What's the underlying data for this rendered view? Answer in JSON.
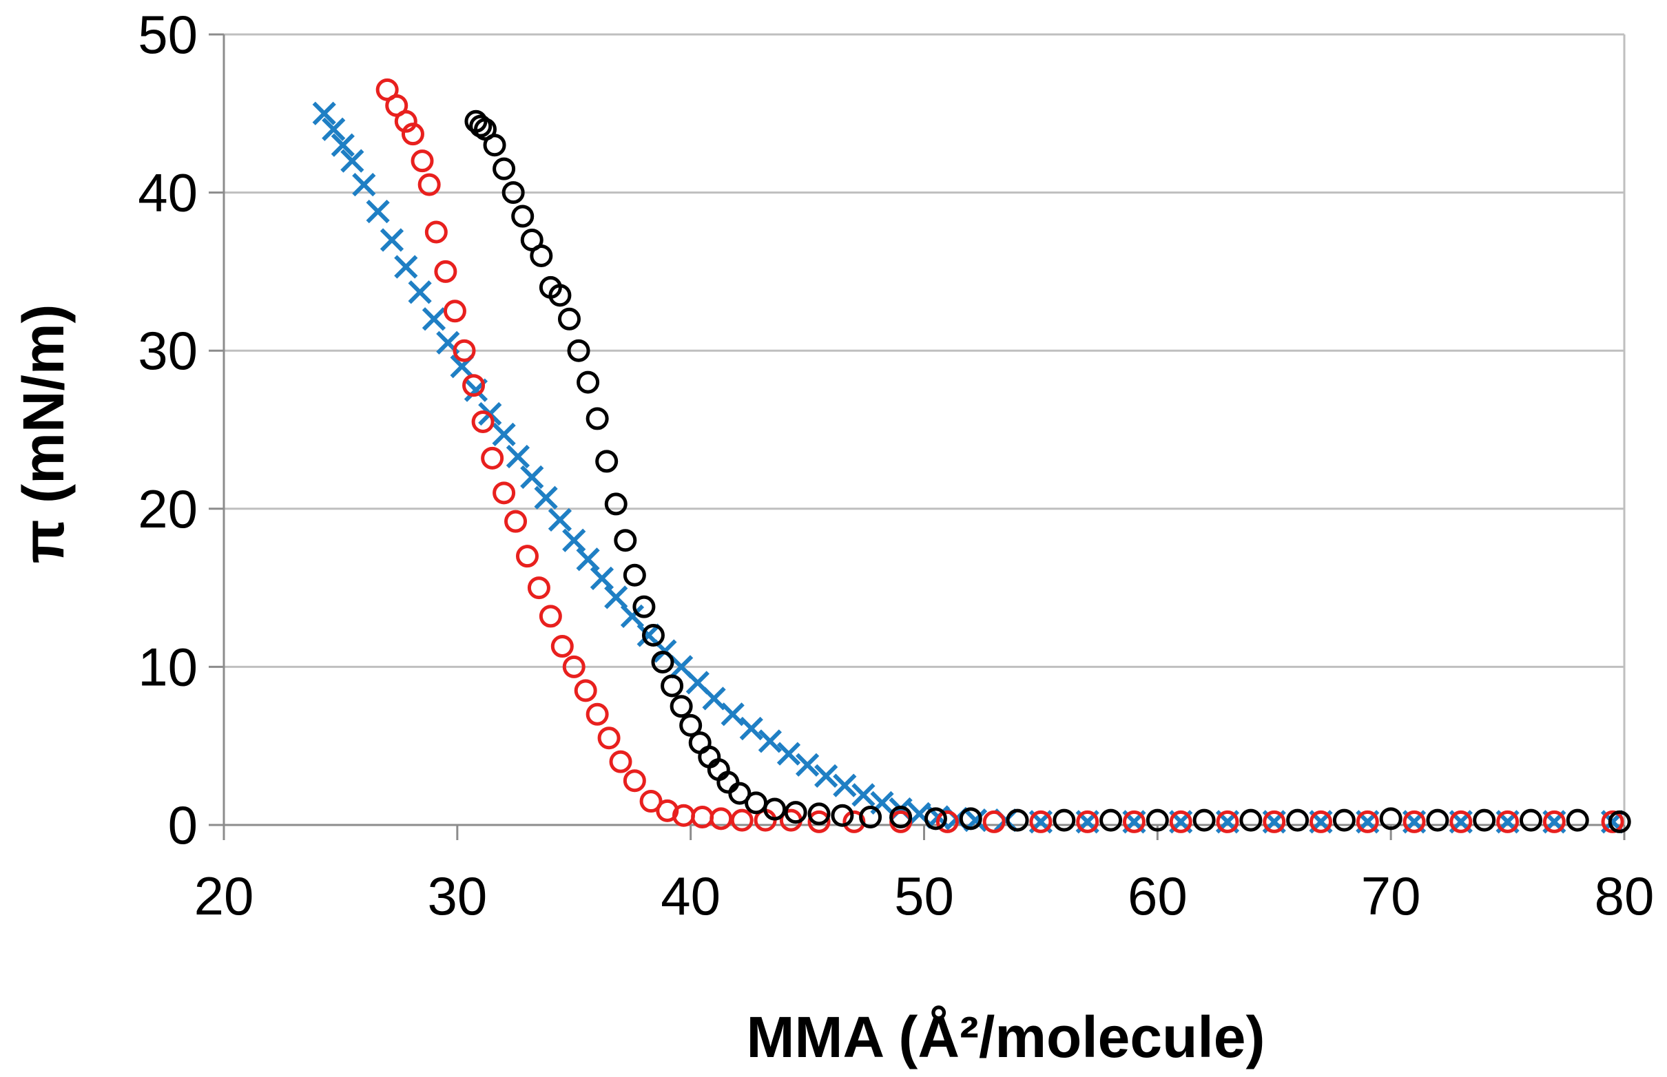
{
  "chart_data": {
    "type": "scatter",
    "title": "",
    "xlabel": "MMA (Å²/molecule)",
    "ylabel": "π (mN/m)",
    "xlim": [
      20,
      80
    ],
    "ylim": [
      0,
      50
    ],
    "xticks": [
      "20",
      "30",
      "40",
      "50",
      "60",
      "70",
      "80"
    ],
    "yticks": [
      "0",
      "10",
      "20",
      "30",
      "40",
      "50"
    ],
    "grid": "horizontal",
    "legend": "none",
    "series": [
      {
        "name": "blue",
        "marker": "x",
        "color": "#1f7fc4",
        "x": [
          24.3,
          24.7,
          25.1,
          25.5,
          26.0,
          26.6,
          27.2,
          27.8,
          28.4,
          29.0,
          29.6,
          30.2,
          30.8,
          31.4,
          32.0,
          32.6,
          33.2,
          33.8,
          34.4,
          35.0,
          35.6,
          36.2,
          36.8,
          37.5,
          38.2,
          38.9,
          39.6,
          40.3,
          41.0,
          41.8,
          42.6,
          43.4,
          44.2,
          45.0,
          45.8,
          46.6,
          47.4,
          48.2,
          49.0,
          49.8,
          50.6,
          51.4,
          52.2,
          53.5,
          55,
          57,
          59,
          61,
          63,
          65,
          67,
          69,
          71,
          73,
          75,
          77,
          79.5
        ],
        "y": [
          45.0,
          44.0,
          43.0,
          42.0,
          40.5,
          38.8,
          37.0,
          35.3,
          33.7,
          32.0,
          30.5,
          29.0,
          27.5,
          26.0,
          24.7,
          23.3,
          22.0,
          20.7,
          19.3,
          18.0,
          16.8,
          15.6,
          14.4,
          13.2,
          12.0,
          11.0,
          10.0,
          9.0,
          8.0,
          7.0,
          6.1,
          5.3,
          4.5,
          3.8,
          3.1,
          2.5,
          1.9,
          1.4,
          1.0,
          0.7,
          0.5,
          0.4,
          0.3,
          0.3,
          0.2,
          0.2,
          0.2,
          0.2,
          0.2,
          0.2,
          0.2,
          0.2,
          0.2,
          0.2,
          0.2,
          0.2,
          0.2
        ]
      },
      {
        "name": "red",
        "marker": "circle",
        "color": "#e8201e",
        "x": [
          27.0,
          27.4,
          27.8,
          28.1,
          28.5,
          28.8,
          29.1,
          29.5,
          29.9,
          30.3,
          30.7,
          31.1,
          31.5,
          32.0,
          32.5,
          33.0,
          33.5,
          34.0,
          34.5,
          35.0,
          35.5,
          36.0,
          36.5,
          37.0,
          37.6,
          38.3,
          39.0,
          39.7,
          40.5,
          41.3,
          42.2,
          43.2,
          44.3,
          45.5,
          47,
          49,
          51,
          53,
          55,
          57,
          59,
          61,
          63,
          65,
          67,
          69,
          71,
          73,
          75,
          77,
          79.5
        ],
        "y": [
          46.5,
          45.5,
          44.5,
          43.7,
          42.0,
          40.5,
          37.5,
          35.0,
          32.5,
          30.0,
          27.8,
          25.5,
          23.2,
          21.0,
          19.2,
          17.0,
          15.0,
          13.2,
          11.3,
          10.0,
          8.5,
          7.0,
          5.5,
          4.0,
          2.8,
          1.5,
          0.9,
          0.6,
          0.5,
          0.4,
          0.3,
          0.3,
          0.3,
          0.2,
          0.2,
          0.2,
          0.2,
          0.2,
          0.2,
          0.2,
          0.2,
          0.2,
          0.2,
          0.2,
          0.2,
          0.2,
          0.2,
          0.2,
          0.2,
          0.2,
          0.2
        ]
      },
      {
        "name": "black",
        "marker": "circle",
        "color": "#000000",
        "x": [
          30.8,
          31.0,
          31.2,
          31.6,
          32.0,
          32.4,
          32.8,
          33.2,
          33.6,
          34.0,
          34.4,
          34.8,
          35.2,
          35.6,
          36.0,
          36.4,
          36.8,
          37.2,
          37.6,
          38.0,
          38.4,
          38.8,
          39.2,
          39.6,
          40.0,
          40.4,
          40.8,
          41.2,
          41.6,
          42.1,
          42.8,
          43.6,
          44.5,
          45.5,
          46.5,
          47.7,
          49,
          50.5,
          52,
          54,
          56,
          58,
          60,
          62,
          64,
          66,
          68,
          70,
          72,
          74,
          76,
          78,
          79.8
        ],
        "y": [
          44.5,
          44.2,
          44.0,
          43.0,
          41.5,
          40.0,
          38.5,
          37.0,
          36.0,
          34.0,
          33.5,
          32.0,
          30.0,
          28.0,
          25.7,
          23.0,
          20.3,
          18.0,
          15.8,
          13.8,
          12.0,
          10.3,
          8.8,
          7.5,
          6.3,
          5.2,
          4.3,
          3.5,
          2.7,
          2.0,
          1.4,
          1.0,
          0.8,
          0.7,
          0.6,
          0.5,
          0.5,
          0.4,
          0.4,
          0.3,
          0.3,
          0.3,
          0.3,
          0.3,
          0.3,
          0.3,
          0.3,
          0.4,
          0.3,
          0.3,
          0.3,
          0.3,
          0.2
        ]
      }
    ]
  }
}
